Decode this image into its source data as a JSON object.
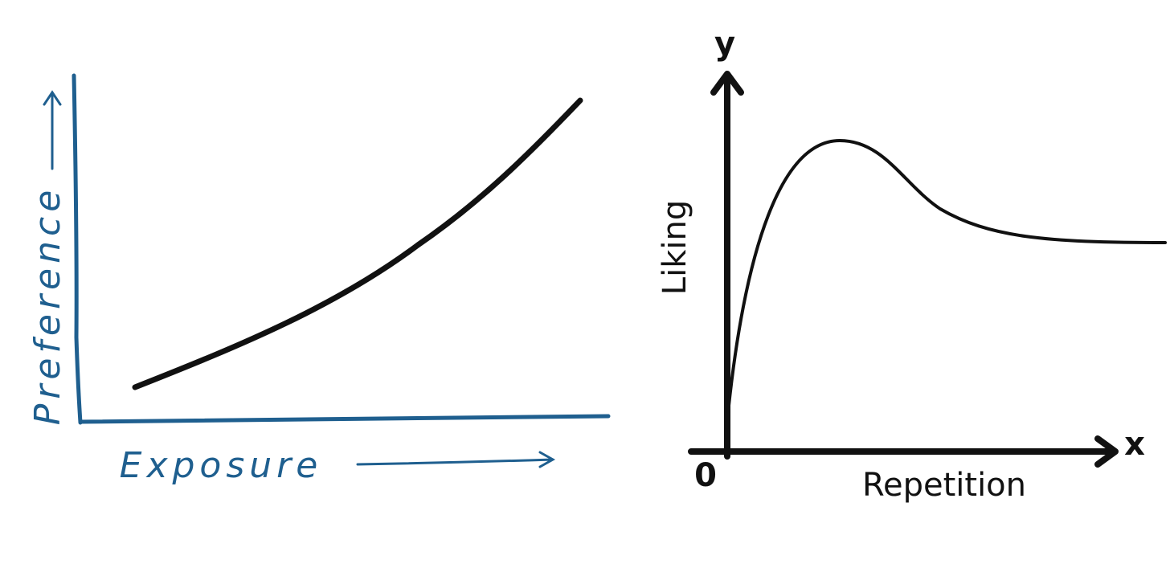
{
  "panels": [
    {
      "y_label": "Preference",
      "x_label": "Exposure"
    },
    {
      "y_axis": "y",
      "x_axis": "x",
      "origin": "0",
      "y_label": "Liking",
      "x_label": "Repetition"
    }
  ]
}
